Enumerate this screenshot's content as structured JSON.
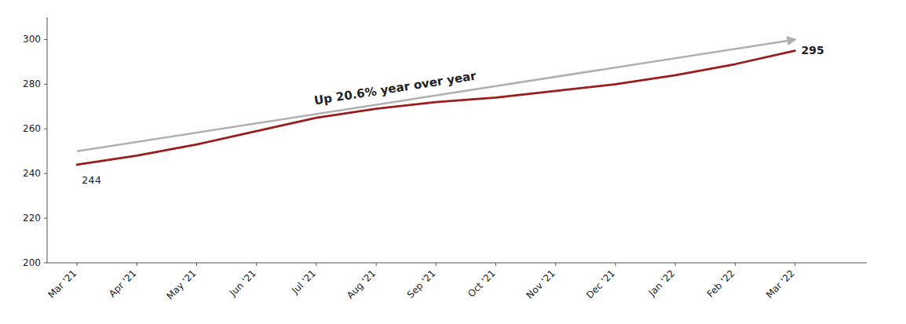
{
  "chart_data": {
    "type": "line",
    "categories": [
      "Mar '21",
      "Apr '21",
      "May '21",
      "Jun '21",
      "Jul '21",
      "Aug '21",
      "Sep '21",
      "Oct '21",
      "Nov '21",
      "Dec '21",
      "Jan '22",
      "Feb '22",
      "Mar '22"
    ],
    "series": [
      {
        "color": "#9b1c1c",
        "values": [
          244,
          248,
          253,
          259,
          265,
          269,
          272,
          274,
          277,
          280,
          284,
          289,
          295
        ]
      }
    ],
    "arrow": {
      "from": "Mar '21",
      "to": "Mar '22",
      "values": [
        250,
        300
      ],
      "color": "#b0b0b0"
    },
    "annotations": [
      {
        "text": "Up 20.6% year over year"
      },
      {
        "text": "244"
      },
      {
        "text": "295"
      }
    ],
    "ylim": [
      200,
      310
    ],
    "yticks": [
      200,
      220,
      240,
      260,
      280,
      300
    ],
    "grid": false
  }
}
